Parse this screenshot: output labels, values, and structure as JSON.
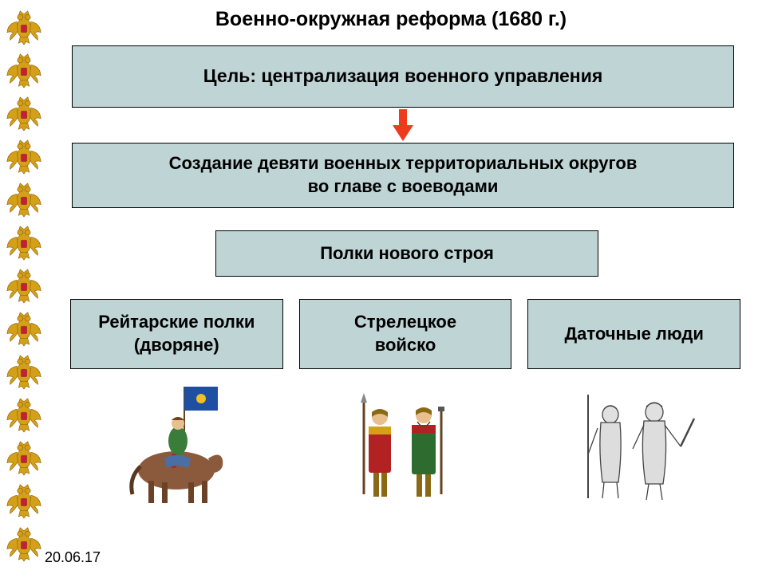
{
  "title": "Военно-окружная реформа (1680 г.)",
  "goal": "Цель: централизация военного управления",
  "creation_l1": "Создание девяти военных территориальных округов",
  "creation_l2": "во главе с воеводами",
  "regiments": "Полки нового строя",
  "col1_l1": "Рейтарские полки",
  "col1_l2": "(дворяне)",
  "col2_l1": "Стрелецкое",
  "col2_l2": "войско",
  "col3": "Даточные люди",
  "date": "20.06.17",
  "colors": {
    "box_bg": "#bfd4d4",
    "box_border": "#000000",
    "arrow": "#ed3b1c",
    "eagle_gold": "#d4a017",
    "eagle_dark": "#8b5a00",
    "eagle_red": "#c41e3a"
  },
  "layout": {
    "eagle_count": 13,
    "box_goal_w": 830,
    "box_goal_h": 78,
    "box_creation_w": 830,
    "box_creation_h": 82,
    "box_regiments_w": 480,
    "box_regiments_h": 58,
    "box_small_h": 88,
    "title_fontsize": 25,
    "box_fontsize": 22
  }
}
